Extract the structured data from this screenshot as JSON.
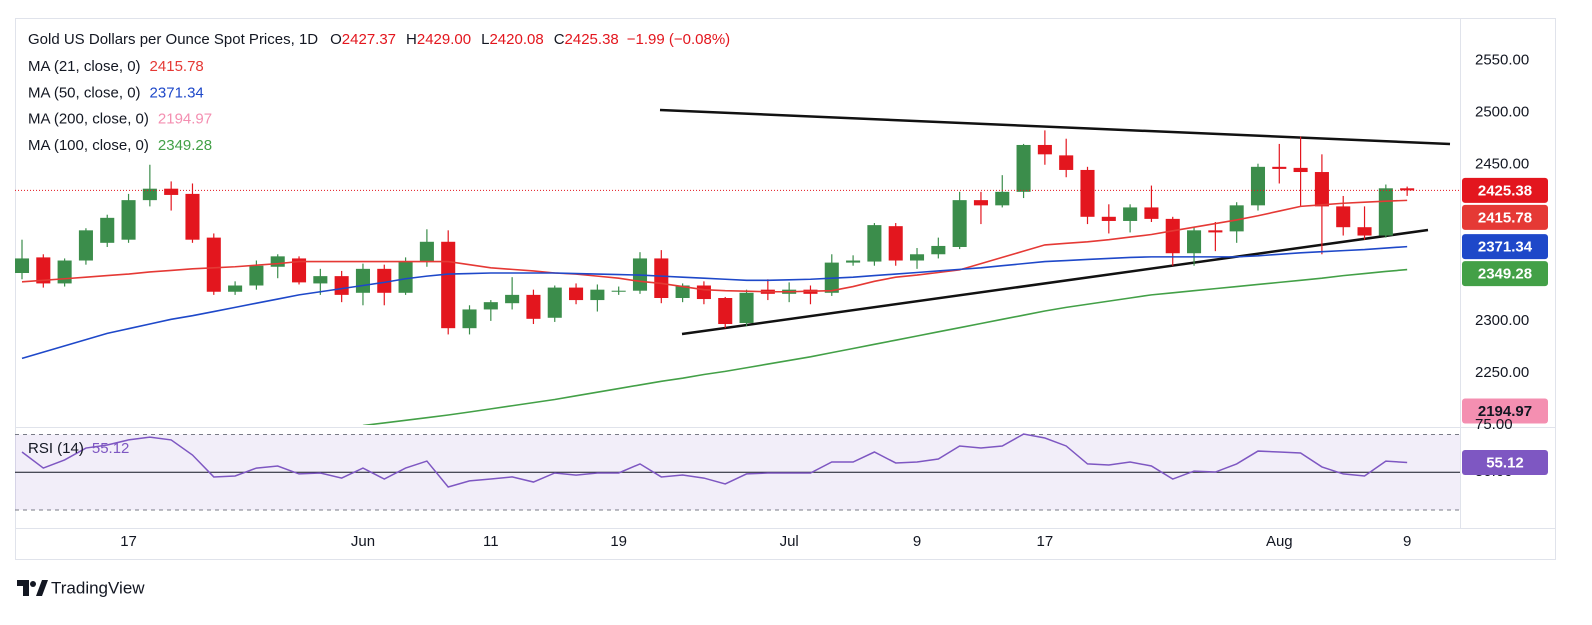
{
  "chart_data": {
    "type": "candlestick",
    "title": "Gold US Dollars per Ounce Spot Prices, 1D",
    "quote": [
      {
        "key": "O",
        "text": "2427.37"
      },
      {
        "key": "H",
        "text": "2429.00"
      },
      {
        "key": "L",
        "text": "2420.08"
      },
      {
        "key": "C",
        "text": "2425.38"
      }
    ],
    "change": "−1.99 (−0.08%)",
    "categories": [
      null,
      null,
      null,
      null,
      null,
      "17",
      null,
      null,
      null,
      null,
      null,
      null,
      null,
      null,
      null,
      null,
      "Jun",
      null,
      null,
      null,
      null,
      null,
      "11",
      null,
      null,
      null,
      null,
      null,
      "19",
      null,
      null,
      null,
      null,
      null,
      null,
      null,
      "Jul",
      null,
      null,
      null,
      null,
      null,
      "9",
      null,
      null,
      null,
      null,
      null,
      "17",
      null,
      null,
      null,
      null,
      null,
      null,
      null,
      null,
      null,
      null,
      "Aug",
      null,
      null,
      null,
      null,
      null,
      "9"
    ],
    "open": [
      2346,
      2361,
      2336,
      2358,
      2375,
      2378,
      2416,
      2427,
      2422,
      2380,
      2328,
      2334,
      2352,
      2360,
      2336,
      2343,
      2327,
      2350,
      2327,
      2357,
      2376,
      2293,
      2311,
      2317,
      2325,
      2303,
      2332,
      2320,
      2328,
      2329,
      2360,
      2322,
      2334,
      2322,
      2298,
      2330,
      2326,
      2330,
      2327,
      2356,
      2357,
      2391,
      2358,
      2364,
      2371,
      2416,
      2411,
      2424,
      2469,
      2459,
      2445,
      2400,
      2396,
      2409,
      2398,
      2365,
      2387,
      2386,
      2411,
      2448,
      2447,
      2443,
      2410,
      2390,
      2382,
      2427.37
    ],
    "high": [
      2378,
      2364,
      2360,
      2389,
      2402,
      2422,
      2450,
      2434,
      2432,
      2384,
      2338,
      2358,
      2364,
      2362,
      2350,
      2348,
      2355,
      2354,
      2361,
      2388,
      2387,
      2315,
      2320,
      2342,
      2330,
      2334,
      2336,
      2335,
      2333,
      2366,
      2368,
      2336,
      2338,
      2323,
      2330,
      2340,
      2337,
      2334,
      2364,
      2363,
      2394,
      2394,
      2370,
      2380,
      2424,
      2424,
      2440,
      2470,
      2483,
      2475,
      2448,
      2412,
      2412,
      2430,
      2400,
      2390,
      2395,
      2414,
      2451,
      2470,
      2477,
      2460,
      2420,
      2410,
      2431,
      2429
    ],
    "low": [
      2340,
      2332,
      2333,
      2354,
      2371,
      2375,
      2410,
      2406,
      2375,
      2325,
      2325,
      2330,
      2341,
      2335,
      2325,
      2318,
      2315,
      2315,
      2325,
      2352,
      2287,
      2287,
      2300,
      2311,
      2297,
      2299,
      2316,
      2309,
      2325,
      2326,
      2317,
      2318,
      2316,
      2293,
      2295,
      2320,
      2318,
      2316,
      2324,
      2353,
      2353,
      2353,
      2350,
      2360,
      2369,
      2393,
      2409,
      2418,
      2450,
      2438,
      2393,
      2384,
      2385,
      2395,
      2353,
      2353,
      2367,
      2375,
      2406,
      2432,
      2410,
      2364,
      2382,
      2378,
      2380,
      2420.08
    ],
    "close": [
      2360,
      2336,
      2358,
      2387,
      2399,
      2416,
      2427,
      2421,
      2378,
      2328,
      2334,
      2353,
      2362,
      2337,
      2343,
      2325,
      2350,
      2327,
      2357,
      2376,
      2293,
      2311,
      2318,
      2325,
      2302,
      2332,
      2320,
      2330,
      2329,
      2360,
      2322,
      2334,
      2321,
      2297,
      2327,
      2326,
      2330,
      2326,
      2356,
      2358,
      2392,
      2358,
      2364,
      2372,
      2416,
      2411,
      2424,
      2469,
      2460,
      2445,
      2400,
      2396,
      2409,
      2398,
      2365,
      2387,
      2385,
      2411,
      2448,
      2446,
      2443,
      2410,
      2390,
      2382,
      2427.37,
      2425.38
    ],
    "up_color": "#3b8d4b",
    "down_color": "#e3161e",
    "series": [
      {
        "name": "MA (21, close, 0)",
        "color": "#e53935",
        "values": [
          2337.5,
          2339,
          2340.5,
          2342,
          2343.5,
          2345,
          2347,
          2348.5,
          2350,
          2351,
          2352,
          2353.5,
          2355,
          2357,
          2357,
          2357,
          2357,
          2357,
          2357,
          2357,
          2357,
          2354,
          2351,
          2349.5,
          2348,
          2346,
          2345,
          2343,
          2341,
          2338,
          2336,
          2333,
          2330,
          2329,
          2328.5,
          2328,
          2328,
          2328.5,
          2329,
          2333,
          2338,
          2342,
          2344,
          2346.5,
          2349,
          2355,
          2361,
          2367,
          2373,
          2374.5,
          2376,
          2378,
          2380.5,
          2383,
          2386.5,
          2390,
          2393.5,
          2397,
          2401,
          2405.5,
          2410,
          2411.5,
          2413,
          2414,
          2415,
          2415.78
        ]
      },
      {
        "name": "MA (50, close, 0)",
        "color": "#1e48c9",
        "values": [
          2264,
          2270,
          2276,
          2282,
          2288,
          2292.5,
          2297,
          2301.5,
          2305,
          2309,
          2313,
          2317,
          2321,
          2325,
          2328,
          2331,
          2334,
          2337,
          2340.5,
          2343,
          2345,
          2345.5,
          2346,
          2346,
          2346,
          2346,
          2345.5,
          2345,
          2344.5,
          2344,
          2343,
          2342,
          2341,
          2340,
          2339,
          2339,
          2339.5,
          2340,
          2341,
          2342,
          2343.5,
          2345,
          2346.5,
          2348,
          2349.5,
          2351,
          2353,
          2355,
          2357,
          2358,
          2359,
          2360,
          2361,
          2361.5,
          2361.5,
          2361.5,
          2361.5,
          2361.5,
          2362.5,
          2364,
          2365.4,
          2366.5,
          2367.5,
          2368.5,
          2370,
          2371.34
        ]
      },
      {
        "name": "MA (200, close, 0)",
        "color": "#f48fb1",
        "values": [
          null,
          null,
          null,
          null,
          null,
          null,
          null,
          null,
          null,
          null,
          null,
          null,
          null,
          null,
          null,
          null,
          null,
          null,
          null,
          null,
          null,
          null,
          null,
          null,
          null,
          null,
          null,
          null,
          null,
          null,
          null,
          null,
          null,
          null,
          null,
          null,
          null,
          null,
          null,
          null,
          null,
          null,
          null,
          null,
          null,
          null,
          null,
          null,
          null,
          null,
          null,
          null,
          null,
          null,
          null,
          null,
          null,
          null,
          null,
          null,
          null,
          null,
          null,
          null,
          null,
          2194.97
        ]
      },
      {
        "name": "MA (100, close, 0)",
        "color": "#43a047",
        "values": [
          null,
          null,
          null,
          null,
          null,
          null,
          null,
          null,
          null,
          null,
          null,
          null,
          null,
          null,
          null,
          null,
          2199.5,
          2202,
          2204.5,
          2207,
          2209.6,
          2212.5,
          2215.5,
          2218.5,
          2221.5,
          2224.5,
          2228,
          2231.5,
          2235,
          2238.5,
          2242,
          2245,
          2248.5,
          2251.5,
          2255,
          2258.5,
          2262,
          2265.5,
          2269.5,
          2273.5,
          2277.5,
          2281.5,
          2285.5,
          2289.5,
          2293.5,
          2297.5,
          2301.5,
          2305.5,
          2309.5,
          2313,
          2316,
          2319,
          2322,
          2325,
          2327,
          2329,
          2331,
          2333,
          2335,
          2337,
          2339,
          2341,
          2343.5,
          2345.5,
          2347.5,
          2349.28
        ]
      }
    ],
    "ylim": [
      2200,
      2590
    ],
    "yticks": [
      {
        "value": 2250,
        "label": "2250.00"
      },
      {
        "value": 2300,
        "label": "2300.00"
      },
      {
        "value": 2450,
        "label": "2450.00"
      },
      {
        "value": 2500,
        "label": "2500.00"
      },
      {
        "value": 2550,
        "label": "2550.00"
      }
    ],
    "rsi": {
      "name": "RSI (14)",
      "color": "#7e57c2",
      "values": [
        60.7,
        52.2,
        56.5,
        62.8,
        64.4,
        67.1,
        68.6,
        67.1,
        59.1,
        47.5,
        48.0,
        52.2,
        53.3,
        49.1,
        49.6,
        46.9,
        52.2,
        46.4,
        52.2,
        55.9,
        42.2,
        45.4,
        46.4,
        47.5,
        44.8,
        49.6,
        48.5,
        49.6,
        49.6,
        54.4,
        47.5,
        48.5,
        46.9,
        43.8,
        49.1,
        49.6,
        49.6,
        49.6,
        55.4,
        55.4,
        60.7,
        54.9,
        55.4,
        57.0,
        63.9,
        62.8,
        63.9,
        70.2,
        68.1,
        63.9,
        54.4,
        53.8,
        55.4,
        53.3,
        46.4,
        50.6,
        50.1,
        54.4,
        61.2,
        60.7,
        60.2,
        52.8,
        49.1,
        48.0,
        55.9,
        55.12
      ],
      "ylim": [
        21,
        75
      ],
      "yticks": [
        {
          "value": 75,
          "label": "75.00"
        },
        {
          "value": 50,
          "label": "50.00"
        }
      ],
      "levels": [
        70,
        50,
        30
      ]
    }
  },
  "footer": "TradingView"
}
